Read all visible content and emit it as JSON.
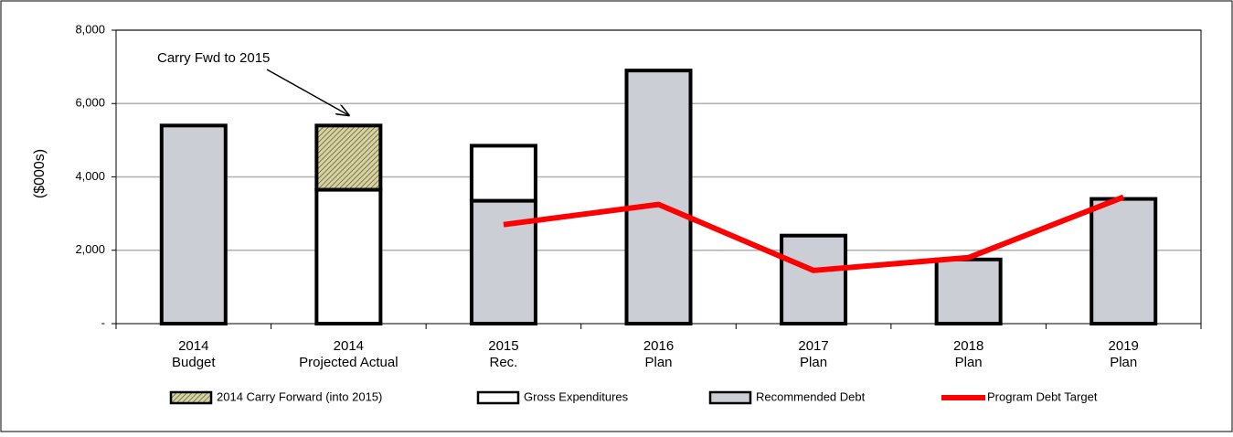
{
  "chart_data": {
    "type": "bar",
    "y_label": "($000s)",
    "categories": [
      [
        "2014",
        "Budget"
      ],
      [
        "2014",
        "Projected Actual"
      ],
      [
        "2015",
        "Rec."
      ],
      [
        "2016",
        "Plan"
      ],
      [
        "2017",
        "Plan"
      ],
      [
        "2018",
        "Plan"
      ],
      [
        "2019",
        "Plan"
      ]
    ],
    "series": [
      {
        "name": "Recommended Debt",
        "color": "#ccced6",
        "values": [
          5400,
          null,
          3350,
          6900,
          2400,
          1750,
          3400
        ]
      },
      {
        "name": "Gross Expenditures",
        "color": "#ffffff",
        "values": [
          null,
          3650,
          1500,
          null,
          null,
          null,
          null
        ]
      },
      {
        "name": "2014 Carry Forward (into 2015)",
        "color": "#d6d2a4",
        "pattern": "hatch",
        "values": [
          null,
          1750,
          null,
          null,
          null,
          null,
          null
        ]
      },
      {
        "name": "Program Debt Target",
        "color": "#ff0000",
        "type": "line",
        "values": [
          null,
          null,
          2700,
          3250,
          1450,
          1800,
          3450
        ]
      }
    ],
    "legend_order": [
      2,
      1,
      0,
      3
    ],
    "annotation": {
      "text": "Carry Fwd to 2015",
      "category": 1
    },
    "ylim": [
      0,
      8000
    ],
    "yticks": [
      {
        "value": 0,
        "label": "-"
      },
      {
        "value": 2000,
        "label": "2,000"
      },
      {
        "value": 4000,
        "label": "4,000"
      },
      {
        "value": 6000,
        "label": "6,000"
      },
      {
        "value": 8000,
        "label": "8,000"
      }
    ],
    "grid": true
  }
}
